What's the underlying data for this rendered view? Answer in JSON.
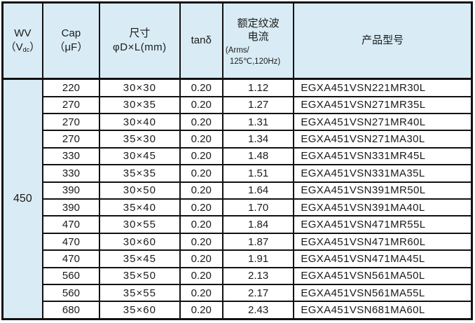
{
  "colors": {
    "header_bg": "#d9ecf5",
    "border": "#111111",
    "text": "#1a1a1a",
    "row_bg": "#ffffff"
  },
  "header": {
    "wv": {
      "line1": "WV",
      "paren_open": "（V",
      "sub": "dc",
      "paren_close": "）"
    },
    "cap": {
      "line1": "Cap",
      "line2": "（μF）"
    },
    "size": {
      "line1": "尺寸",
      "line2": "φD×L(mm)"
    },
    "tand": "tanδ",
    "ripple": {
      "line1": "额定纹波",
      "line2": "电流",
      "line3": "(Arms/",
      "line4": "125℃,120Hz)"
    },
    "model": "产品型号"
  },
  "wv_value": "450",
  "rows": [
    {
      "cap": "220",
      "size": "30×30",
      "tand": "0.20",
      "ripple": "1.12",
      "model": "EGXA451VSN221MR30L"
    },
    {
      "cap": "270",
      "size": "30×35",
      "tand": "0.20",
      "ripple": "1.27",
      "model": "EGXA451VSN271MR35L"
    },
    {
      "cap": "270",
      "size": "30×40",
      "tand": "0.20",
      "ripple": "1.31",
      "model": "EGXA451VSN271MR40L"
    },
    {
      "cap": "270",
      "size": "35×30",
      "tand": "0.20",
      "ripple": "1.34",
      "model": "EGXA451VSN271MA30L"
    },
    {
      "cap": "330",
      "size": "30×45",
      "tand": "0.20",
      "ripple": "1.48",
      "model": "EGXA451VSN331MR45L"
    },
    {
      "cap": "330",
      "size": "35×35",
      "tand": "0.20",
      "ripple": "1.51",
      "model": "EGXA451VSN331MA35L"
    },
    {
      "cap": "390",
      "size": "30×50",
      "tand": "0.20",
      "ripple": "1.64",
      "model": "EGXA451VSN391MR50L"
    },
    {
      "cap": "390",
      "size": "35×40",
      "tand": "0.20",
      "ripple": "1.70",
      "model": "EGXA451VSN391MA40L"
    },
    {
      "cap": "470",
      "size": "30×55",
      "tand": "0.20",
      "ripple": "1.84",
      "model": "EGXA451VSN471MR55L"
    },
    {
      "cap": "470",
      "size": "30×60",
      "tand": "0.20",
      "ripple": "1.87",
      "model": "EGXA451VSN471MR60L"
    },
    {
      "cap": "470",
      "size": "35×45",
      "tand": "0.20",
      "ripple": "1.91",
      "model": "EGXA451VSN471MA45L"
    },
    {
      "cap": "560",
      "size": "35×50",
      "tand": "0.20",
      "ripple": "2.13",
      "model": "EGXA451VSN561MA50L"
    },
    {
      "cap": "560",
      "size": "35×55",
      "tand": "0.20",
      "ripple": "2.17",
      "model": "EGXA451VSN561MA55L"
    },
    {
      "cap": "680",
      "size": "35×60",
      "tand": "0.20",
      "ripple": "2.43",
      "model": "EGXA451VSN681MA60L"
    }
  ]
}
